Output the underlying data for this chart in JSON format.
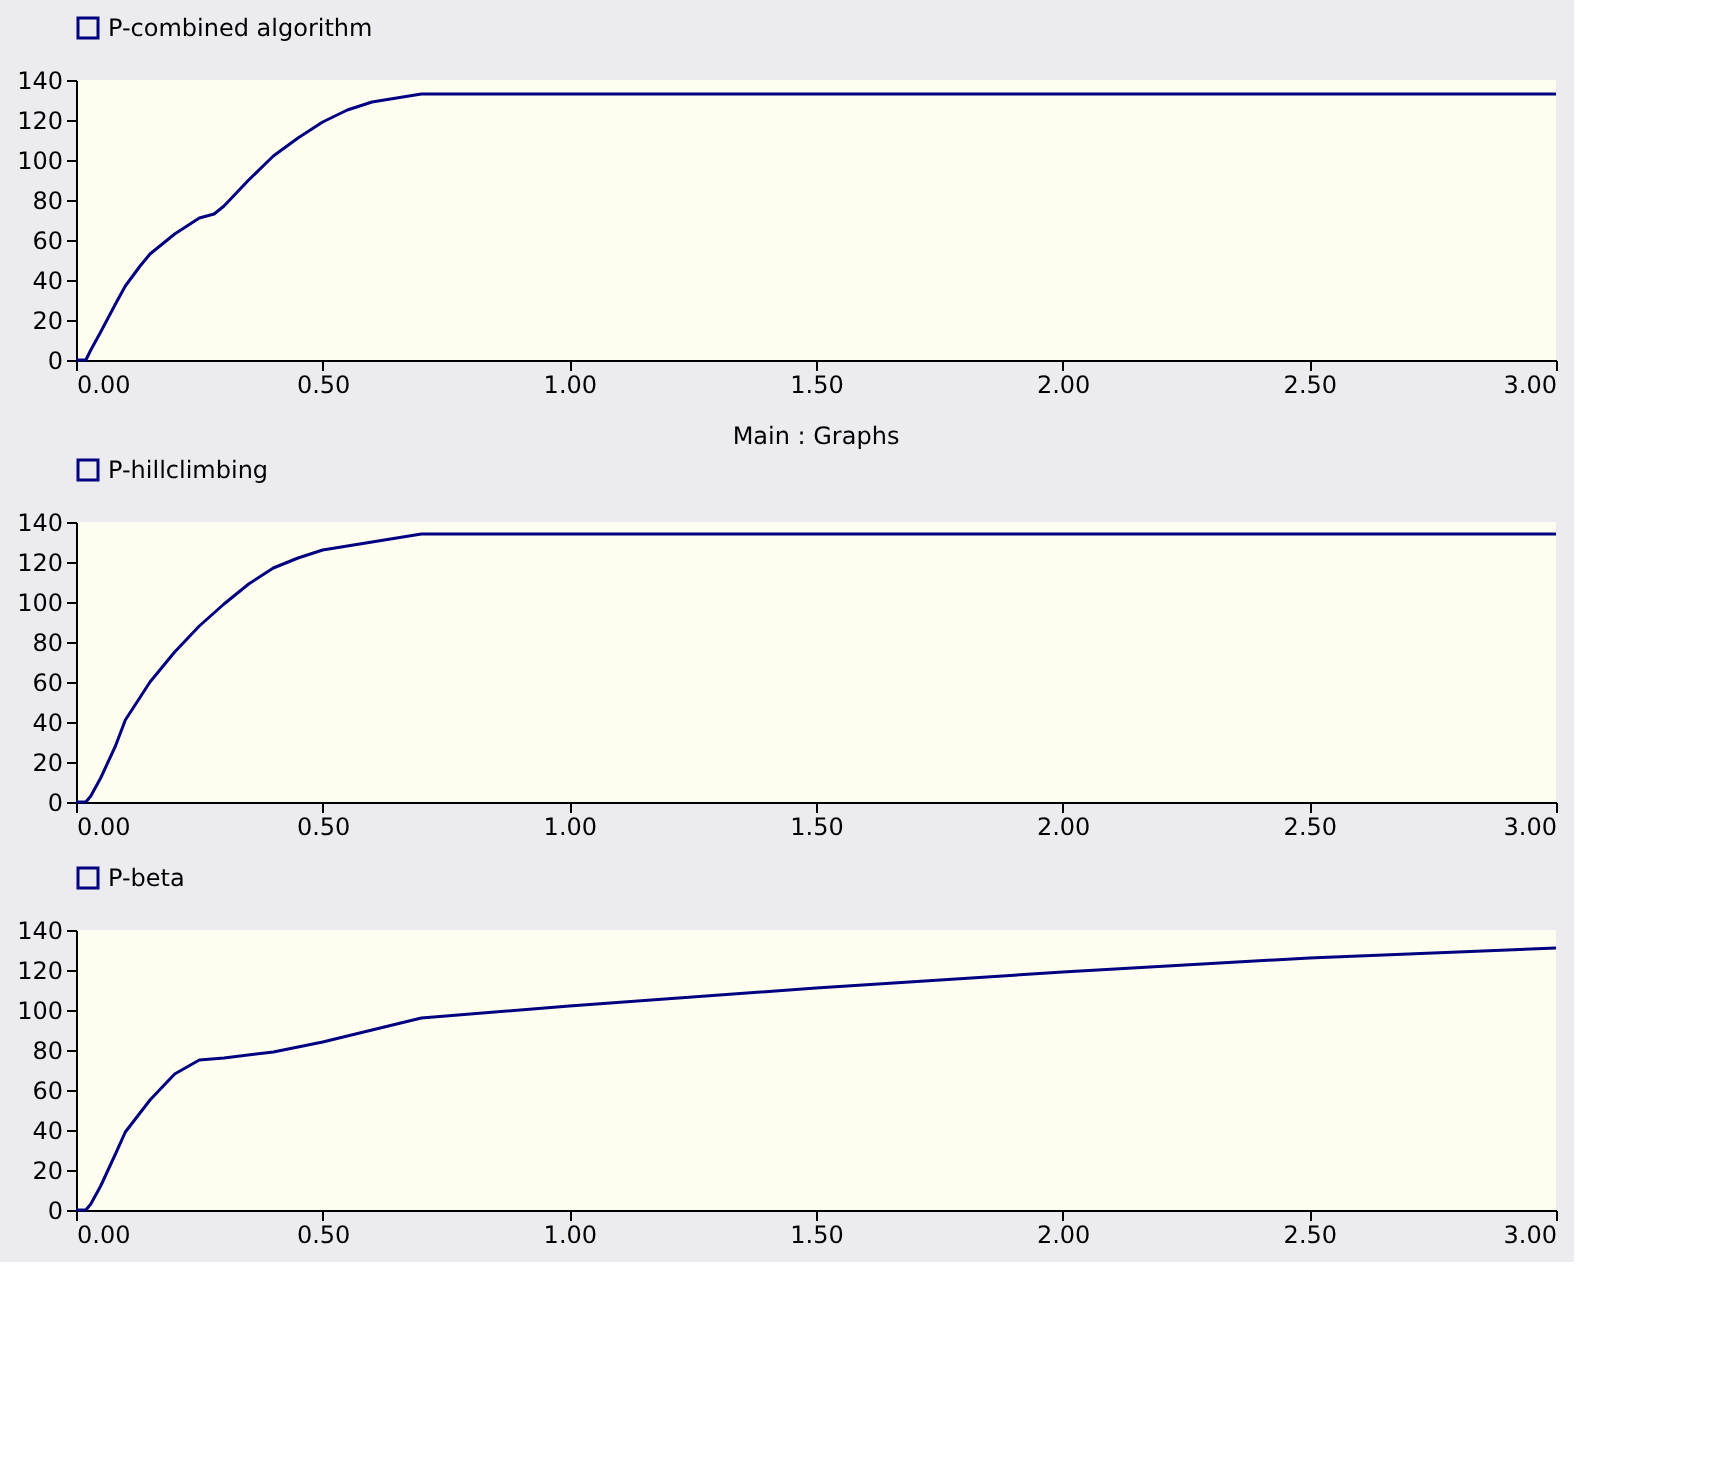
{
  "chart_data": [
    {
      "type": "line",
      "legend": "top left",
      "grid": false,
      "xlim": [
        0,
        3
      ],
      "ylim": [
        0,
        140
      ],
      "xticks": [
        {
          "value": 0,
          "label": "0.00"
        },
        {
          "value": 0.5,
          "label": "0.50"
        },
        {
          "value": 1,
          "label": "1.00"
        },
        {
          "value": 1.5,
          "label": "1.50"
        },
        {
          "value": 2,
          "label": "2.00"
        },
        {
          "value": 2.5,
          "label": "2.50"
        },
        {
          "value": 3,
          "label": "3.00"
        }
      ],
      "yticks": [
        0,
        20,
        40,
        60,
        80,
        100,
        120,
        140
      ],
      "x": [
        0,
        0.02,
        0.03,
        0.05,
        0.08,
        0.1,
        0.13,
        0.15,
        0.2,
        0.25,
        0.28,
        0.3,
        0.35,
        0.4,
        0.45,
        0.5,
        0.55,
        0.6,
        0.65,
        0.7,
        3
      ],
      "series": [
        {
          "name": "P-combined algorithm",
          "color": "#000080",
          "values": [
            0,
            0,
            5,
            14,
            28,
            37,
            47,
            53,
            63,
            71,
            73,
            77,
            90,
            102,
            111,
            119,
            125,
            129,
            131,
            133,
            133
          ]
        }
      ]
    },
    {
      "type": "line",
      "title": "Main : Graphs",
      "legend": "top left",
      "grid": false,
      "xlim": [
        0,
        3
      ],
      "ylim": [
        0,
        140
      ],
      "xticks": [
        {
          "value": 0,
          "label": "0.00"
        },
        {
          "value": 0.5,
          "label": "0.50"
        },
        {
          "value": 1,
          "label": "1.00"
        },
        {
          "value": 1.5,
          "label": "1.50"
        },
        {
          "value": 2,
          "label": "2.00"
        },
        {
          "value": 2.5,
          "label": "2.50"
        },
        {
          "value": 3,
          "label": "3.00"
        }
      ],
      "yticks": [
        0,
        20,
        40,
        60,
        80,
        100,
        120,
        140
      ],
      "x": [
        0,
        0.02,
        0.03,
        0.05,
        0.08,
        0.1,
        0.15,
        0.2,
        0.25,
        0.3,
        0.35,
        0.4,
        0.45,
        0.5,
        0.6,
        0.7,
        3
      ],
      "series": [
        {
          "name": "P-hillclimbing",
          "color": "#000080",
          "values": [
            0,
            0,
            3,
            12,
            28,
            41,
            60,
            75,
            88,
            99,
            109,
            117,
            122,
            126,
            130,
            134,
            134
          ]
        }
      ]
    },
    {
      "type": "line",
      "legend": "top left",
      "grid": false,
      "xlim": [
        0,
        3
      ],
      "ylim": [
        0,
        140
      ],
      "xticks": [
        {
          "value": 0,
          "label": "0.00"
        },
        {
          "value": 0.5,
          "label": "0.50"
        },
        {
          "value": 1,
          "label": "1.00"
        },
        {
          "value": 1.5,
          "label": "1.50"
        },
        {
          "value": 2,
          "label": "2.00"
        },
        {
          "value": 2.5,
          "label": "2.50"
        },
        {
          "value": 3,
          "label": "3.00"
        }
      ],
      "yticks": [
        0,
        20,
        40,
        60,
        80,
        100,
        120,
        140
      ],
      "x": [
        0,
        0.02,
        0.03,
        0.05,
        0.08,
        0.1,
        0.15,
        0.2,
        0.25,
        0.3,
        0.4,
        0.5,
        0.6,
        0.7,
        1,
        1.5,
        2,
        2.5,
        3
      ],
      "series": [
        {
          "name": "P-beta",
          "color": "#000080",
          "values": [
            0,
            0,
            3,
            12,
            28,
            39,
            55,
            68,
            75,
            76,
            79,
            84,
            90,
            96,
            102,
            111,
            119,
            126,
            131
          ]
        }
      ]
    }
  ]
}
